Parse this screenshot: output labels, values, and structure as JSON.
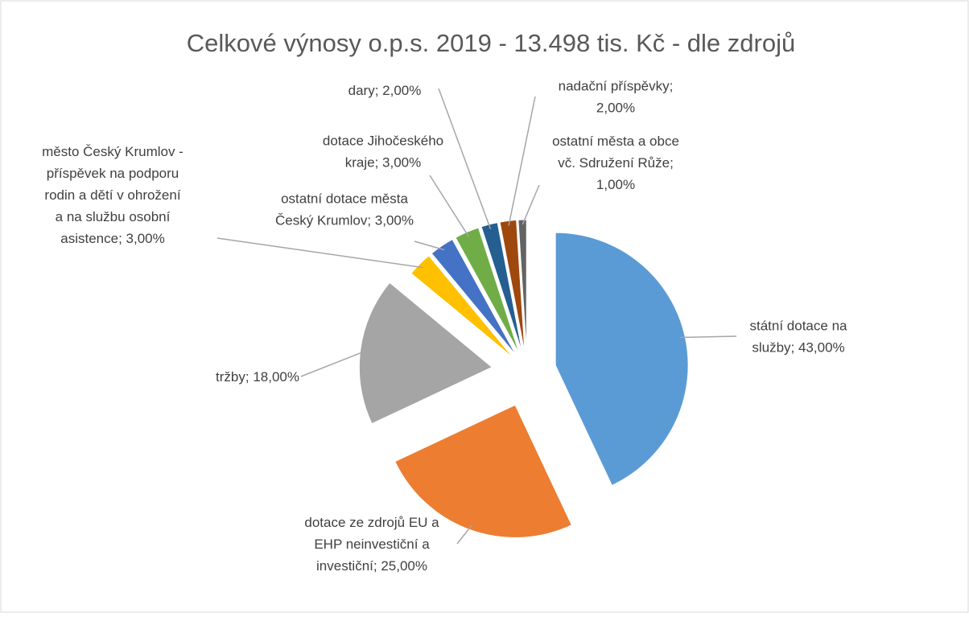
{
  "chart_data": {
    "type": "pie",
    "title": "Celkové výnosy o.p.s. 2019 - 13.498 tis. Kč - dle zdrojů",
    "categories": [
      "státní dotace na služby; 43,00%",
      "dotace ze zdrojů EU a EHP neinvestiční a investiční; 25,00%",
      "tržby; 18,00%",
      "město Český Krumlov - příspěvek na podporu rodin a dětí v ohrožení a na službu osobní asistence; 3,00%",
      "ostatní dotace města Český Krumlov; 3,00%",
      "dotace Jihočeského kraje; 3,00%",
      "dary; 2,00%",
      "nadační příspěvky; 2,00%",
      "ostatní města a obce vč. Sdružení Růže; 1,00%"
    ],
    "values": [
      43,
      25,
      18,
      3,
      3,
      3,
      2,
      2,
      1
    ],
    "colors": [
      "#5b9bd5",
      "#ed7d31",
      "#a5a5a5",
      "#ffc000",
      "#4472c4",
      "#70ad47",
      "#255e91",
      "#9e480e",
      "#636363"
    ]
  }
}
